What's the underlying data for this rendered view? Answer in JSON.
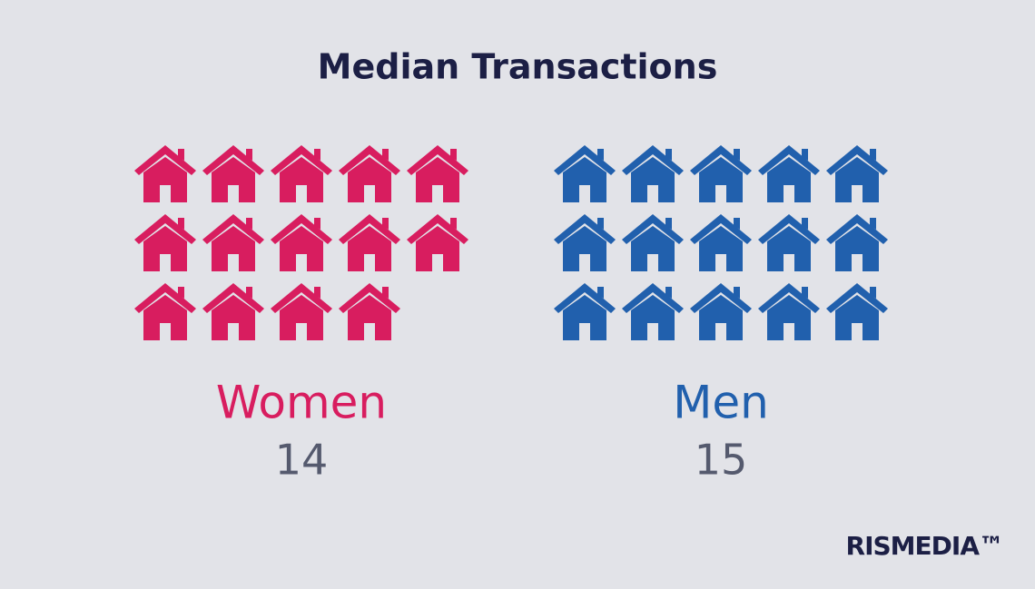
{
  "chart_data": {
    "type": "pictogram",
    "title": "Median Transactions",
    "categories": [
      "Women",
      "Men"
    ],
    "values": [
      14,
      15
    ],
    "colors": [
      "#d81d5f",
      "#2160ad"
    ],
    "per_row": 5,
    "brand": "RISMEDIA™"
  }
}
